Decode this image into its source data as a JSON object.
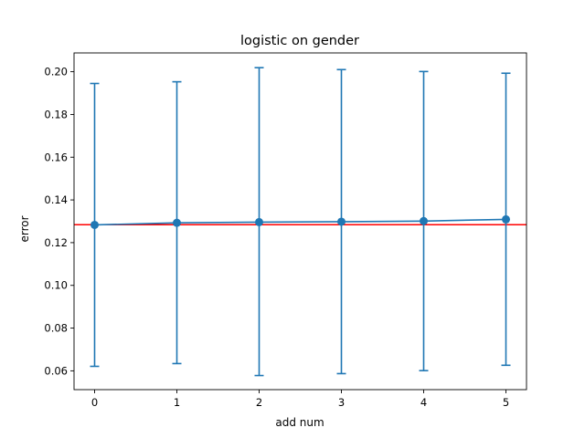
{
  "chart_data": {
    "type": "line",
    "title": "logistic on gender",
    "xlabel": "add num",
    "ylabel": "error",
    "x": [
      0,
      1,
      2,
      3,
      4,
      5
    ],
    "xlim": [
      -0.25,
      5.25
    ],
    "ylim": [
      0.0512,
      0.2088
    ],
    "xticks": [
      "0",
      "1",
      "2",
      "3",
      "4",
      "5"
    ],
    "yticks": [
      "0.06",
      "0.08",
      "0.10",
      "0.12",
      "0.14",
      "0.16",
      "0.18",
      "0.20"
    ],
    "series": [
      {
        "values": [
          0.1283,
          0.1293,
          0.1296,
          0.1298,
          0.1301,
          0.1309
        ],
        "error_lower": [
          0.0621,
          0.0634,
          0.0578,
          0.0587,
          0.0601,
          0.0626
        ],
        "error_upper": [
          0.1945,
          0.1953,
          0.2019,
          0.201,
          0.2001,
          0.1993
        ],
        "color": "#1f77b4",
        "marker": "circle",
        "errorbars": true
      }
    ],
    "reference_line": {
      "y": 0.1284,
      "color": "#ff0000",
      "orientation": "horizontal"
    },
    "grid": false,
    "legend": "none"
  }
}
